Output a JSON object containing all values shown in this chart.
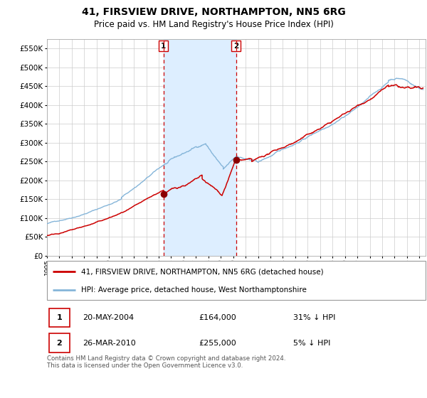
{
  "title": "41, FIRSVIEW DRIVE, NORTHAMPTON, NN5 6RG",
  "subtitle": "Price paid vs. HM Land Registry's House Price Index (HPI)",
  "legend_line1": "41, FIRSVIEW DRIVE, NORTHAMPTON, NN5 6RG (detached house)",
  "legend_line2": "HPI: Average price, detached house, West Northamptonshire",
  "table_row1": [
    "1",
    "20-MAY-2004",
    "£164,000",
    "31% ↓ HPI"
  ],
  "table_row2": [
    "2",
    "26-MAR-2010",
    "£255,000",
    "5% ↓ HPI"
  ],
  "footnote": "Contains HM Land Registry data © Crown copyright and database right 2024.\nThis data is licensed under the Open Government Licence v3.0.",
  "sale1_date": 2004.38,
  "sale2_date": 2010.23,
  "hpi_color": "#85b5d9",
  "price_color": "#cc0000",
  "sale_point_color": "#8b0000",
  "vline_color": "#cc0000",
  "shade_color": "#ddeeff",
  "bg_color": "#ffffff",
  "grid_color": "#cccccc",
  "ylim": [
    0,
    575000
  ],
  "xlim_start": 1995.0,
  "xlim_end": 2025.5,
  "sale1_price": 164000,
  "sale2_price": 255000
}
